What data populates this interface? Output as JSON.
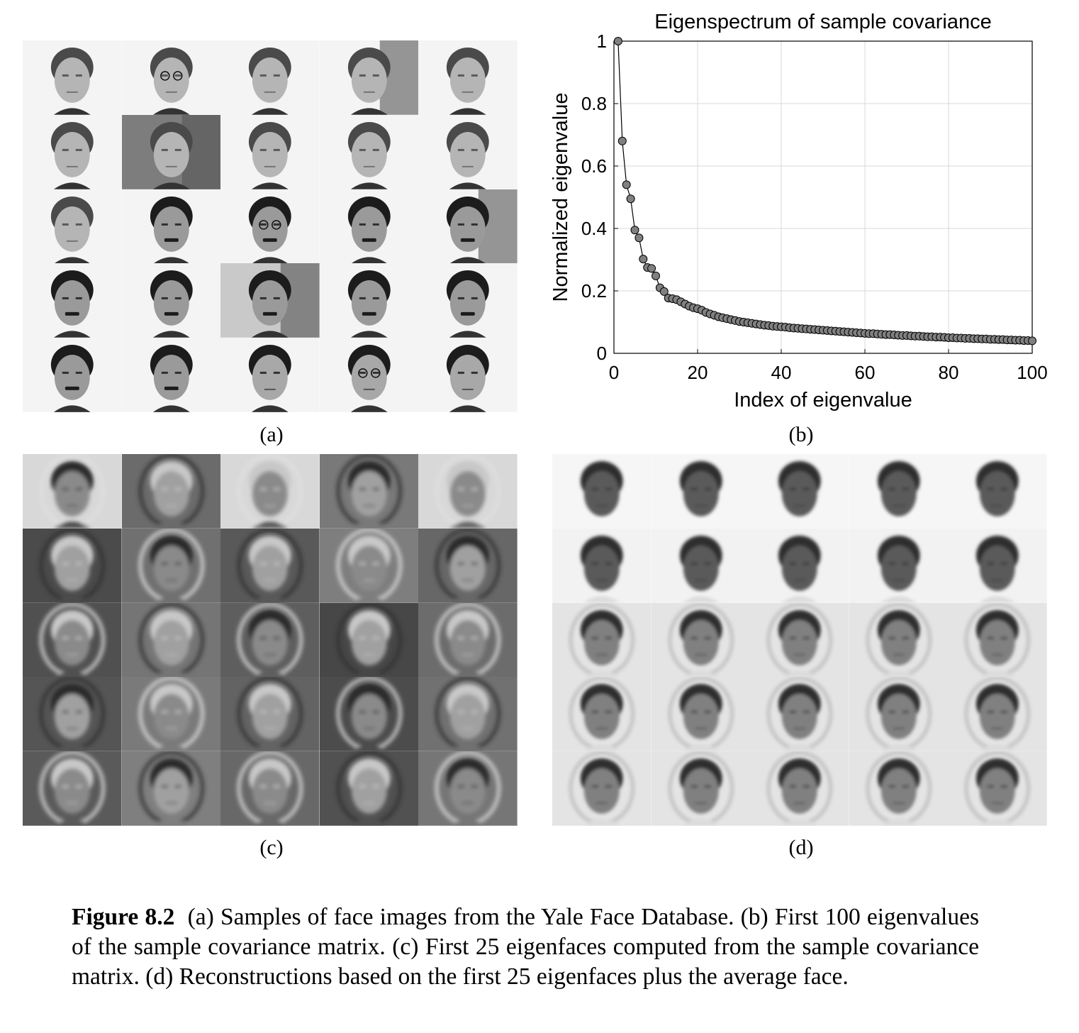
{
  "panels": {
    "a": {
      "label": "(a)"
    },
    "b": {
      "label": "(b)"
    },
    "c": {
      "label": "(c)"
    },
    "d": {
      "label": "(d)"
    }
  },
  "chart_data": {
    "type": "line",
    "title": "Eigenspectrum of sample covariance",
    "xlabel": "Index of eigenvalue",
    "ylabel": "Normalized eigenvalue",
    "xlim": [
      0,
      100
    ],
    "ylim": [
      0,
      1
    ],
    "xticks": [
      "0",
      "20",
      "40",
      "60",
      "80",
      "100"
    ],
    "yticks": [
      "0",
      "0.2",
      "0.4",
      "0.6",
      "0.8",
      "1"
    ],
    "grid": true,
    "marker": "circle",
    "marker_color": "#808080",
    "line_color": "#000000",
    "x": [
      1,
      2,
      3,
      4,
      5,
      6,
      7,
      8,
      9,
      10,
      11,
      12,
      13,
      14,
      15,
      16,
      17,
      18,
      19,
      20,
      21,
      22,
      23,
      24,
      25,
      26,
      27,
      28,
      29,
      30,
      31,
      32,
      33,
      34,
      35,
      36,
      37,
      38,
      39,
      40,
      41,
      42,
      43,
      44,
      45,
      46,
      47,
      48,
      49,
      50,
      51,
      52,
      53,
      54,
      55,
      56,
      57,
      58,
      59,
      60,
      61,
      62,
      63,
      64,
      65,
      66,
      67,
      68,
      69,
      70,
      71,
      72,
      73,
      74,
      75,
      76,
      77,
      78,
      79,
      80,
      81,
      82,
      83,
      84,
      85,
      86,
      87,
      88,
      89,
      90,
      91,
      92,
      93,
      94,
      95,
      96,
      97,
      98,
      99,
      100
    ],
    "values": [
      1.0,
      0.68,
      0.54,
      0.495,
      0.395,
      0.37,
      0.302,
      0.275,
      0.272,
      0.248,
      0.21,
      0.198,
      0.177,
      0.175,
      0.172,
      0.165,
      0.158,
      0.151,
      0.146,
      0.143,
      0.138,
      0.131,
      0.126,
      0.122,
      0.117,
      0.114,
      0.111,
      0.108,
      0.105,
      0.102,
      0.1,
      0.098,
      0.096,
      0.094,
      0.092,
      0.09,
      0.089,
      0.087,
      0.086,
      0.085,
      0.084,
      0.082,
      0.081,
      0.08,
      0.079,
      0.078,
      0.077,
      0.076,
      0.075,
      0.074,
      0.073,
      0.072,
      0.071,
      0.07,
      0.069,
      0.068,
      0.067,
      0.066,
      0.065,
      0.064,
      0.063,
      0.063,
      0.062,
      0.061,
      0.06,
      0.06,
      0.059,
      0.058,
      0.057,
      0.057,
      0.056,
      0.055,
      0.055,
      0.054,
      0.053,
      0.053,
      0.052,
      0.052,
      0.051,
      0.05,
      0.05,
      0.049,
      0.049,
      0.048,
      0.048,
      0.047,
      0.047,
      0.046,
      0.046,
      0.045,
      0.045,
      0.044,
      0.044,
      0.043,
      0.043,
      0.042,
      0.042,
      0.041,
      0.041,
      0.04
    ]
  },
  "caption": {
    "prefix": "Figure 8.2",
    "text": "(a) Samples of face images from the Yale Face Database. (b) First 100 eigenvalues of the sample covariance matrix. (c) First 25 eigenfaces computed from the sample covariance matrix. (d) Reconstructions based on the first 25 eigenfaces plus the average face."
  },
  "colors": {
    "face_dark": "#2a2a2a",
    "face_skin": "#b8b8b8",
    "eigen_bg": "#6a6a6a",
    "recon_bg": "#e8e8e8"
  }
}
